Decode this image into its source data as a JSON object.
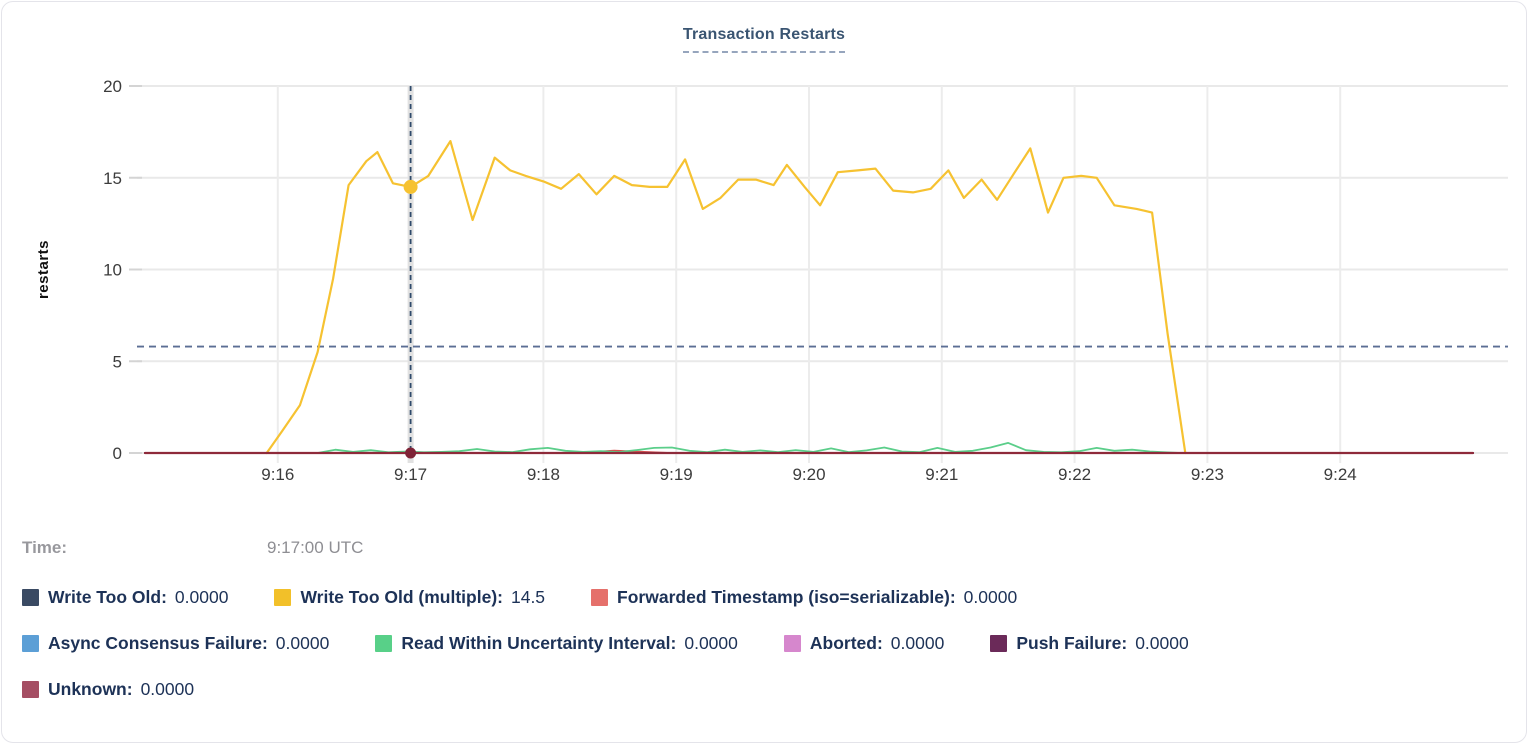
{
  "header": {
    "title": "Transaction Restarts"
  },
  "tooltip": {
    "time_label": "Time:",
    "time_value": "9:17:00 UTC"
  },
  "legend": {
    "rows": [
      [
        {
          "label": "Write Too Old:",
          "value": "0.0000",
          "color": "#3A4A63"
        },
        {
          "label": "Write Too Old (multiple):",
          "value": "14.5",
          "color": "#F2C029"
        },
        {
          "label": "Forwarded Timestamp (iso=serializable):",
          "value": "0.0000",
          "color": "#E5706B"
        }
      ],
      [
        {
          "label": "Async Consensus Failure:",
          "value": "0.0000",
          "color": "#5C9FD6"
        },
        {
          "label": "Read Within Uncertainty Interval:",
          "value": "0.0000",
          "color": "#58D088"
        },
        {
          "label": "Aborted:",
          "value": "0.0000",
          "color": "#D687CD"
        },
        {
          "label": "Push Failure:",
          "value": "0.0000",
          "color": "#6B2A59"
        }
      ],
      [
        {
          "label": "Unknown:",
          "value": "0.0000",
          "color": "#A54E63"
        }
      ]
    ]
  },
  "chart_data": {
    "type": "line",
    "title": "Transaction Restarts",
    "ylabel": "restarts",
    "ylim": [
      0,
      20
    ],
    "y_ticks": [
      0,
      5,
      10,
      15,
      20
    ],
    "x_domain_seconds": [
      0,
      600
    ],
    "x_start_time": "9:15",
    "x_end_time": "9:25",
    "grid": true,
    "x_ticks": [
      {
        "t": 60,
        "label": "9:16"
      },
      {
        "t": 120,
        "label": "9:17"
      },
      {
        "t": 180,
        "label": "9:18"
      },
      {
        "t": 240,
        "label": "9:19"
      },
      {
        "t": 300,
        "label": "9:20"
      },
      {
        "t": 360,
        "label": "9:21"
      },
      {
        "t": 420,
        "label": "9:22"
      },
      {
        "t": 480,
        "label": "9:23"
      },
      {
        "t": 540,
        "label": "9:24"
      }
    ],
    "hover": {
      "time_seconds": 120,
      "time_label": "9:17:00 UTC",
      "guide_value": 5.8,
      "dots": [
        {
          "series": "Write Too Old (multiple)",
          "value": 14.5,
          "color": "#F6C231"
        },
        {
          "series": "Unknown",
          "value": 0,
          "color": "#7E2336"
        }
      ]
    },
    "series": [
      {
        "name": "Write Too Old",
        "color": "#3A4A63",
        "width": 2,
        "points": [
          [
            0,
            0
          ],
          [
            600,
            0
          ]
        ]
      },
      {
        "name": "Write Too Old (multiple)",
        "color": "#F6C231",
        "width": 2.2,
        "points": [
          [
            55,
            0
          ],
          [
            62,
            1.2
          ],
          [
            70,
            2.6
          ],
          [
            78,
            5.5
          ],
          [
            85,
            9.5
          ],
          [
            92,
            14.6
          ],
          [
            100,
            15.9
          ],
          [
            105,
            16.4
          ],
          [
            112,
            14.7
          ],
          [
            120,
            14.5
          ],
          [
            128,
            15.1
          ],
          [
            138,
            17.0
          ],
          [
            148,
            12.7
          ],
          [
            158,
            16.1
          ],
          [
            165,
            15.4
          ],
          [
            172,
            15.1
          ],
          [
            180,
            14.8
          ],
          [
            188,
            14.4
          ],
          [
            196,
            15.2
          ],
          [
            204,
            14.1
          ],
          [
            212,
            15.1
          ],
          [
            220,
            14.6
          ],
          [
            228,
            14.5
          ],
          [
            236,
            14.5
          ],
          [
            244,
            16.0
          ],
          [
            252,
            13.3
          ],
          [
            260,
            13.9
          ],
          [
            268,
            14.9
          ],
          [
            276,
            14.9
          ],
          [
            284,
            14.6
          ],
          [
            290,
            15.7
          ],
          [
            298,
            14.5
          ],
          [
            305,
            13.5
          ],
          [
            313,
            15.3
          ],
          [
            322,
            15.4
          ],
          [
            330,
            15.5
          ],
          [
            338,
            14.3
          ],
          [
            347,
            14.2
          ],
          [
            355,
            14.4
          ],
          [
            363,
            15.4
          ],
          [
            370,
            13.9
          ],
          [
            378,
            14.9
          ],
          [
            385,
            13.8
          ],
          [
            393,
            15.3
          ],
          [
            400,
            16.6
          ],
          [
            408,
            13.1
          ],
          [
            415,
            15.0
          ],
          [
            423,
            15.1
          ],
          [
            430,
            15.0
          ],
          [
            438,
            13.5
          ],
          [
            448,
            13.3
          ],
          [
            455,
            13.1
          ],
          [
            462,
            6.5
          ],
          [
            470,
            0
          ]
        ]
      },
      {
        "name": "Forwarded Timestamp (iso=serializable)",
        "color": "#D8504F",
        "width": 2,
        "points": [
          [
            0,
            0
          ],
          [
            196,
            0
          ],
          [
            204,
            0.06
          ],
          [
            212,
            0.12
          ],
          [
            220,
            0.08
          ],
          [
            228,
            0.04
          ],
          [
            236,
            0
          ],
          [
            600,
            0
          ]
        ]
      },
      {
        "name": "Async Consensus Failure",
        "color": "#5C9FD6",
        "width": 2,
        "points": [
          [
            0,
            0
          ],
          [
            600,
            0
          ]
        ]
      },
      {
        "name": "Read Within Uncertainty Interval",
        "color": "#5BCE8A",
        "width": 1.8,
        "points": [
          [
            78,
            0
          ],
          [
            86,
            0.18
          ],
          [
            94,
            0.06
          ],
          [
            102,
            0.15
          ],
          [
            110,
            0.04
          ],
          [
            118,
            0.08
          ],
          [
            126,
            0.04
          ],
          [
            134,
            0.06
          ],
          [
            142,
            0.1
          ],
          [
            150,
            0.22
          ],
          [
            158,
            0.08
          ],
          [
            166,
            0.05
          ],
          [
            174,
            0.2
          ],
          [
            182,
            0.28
          ],
          [
            190,
            0.12
          ],
          [
            198,
            0.06
          ],
          [
            206,
            0.1
          ],
          [
            214,
            0.05
          ],
          [
            222,
            0.16
          ],
          [
            230,
            0.28
          ],
          [
            238,
            0.3
          ],
          [
            246,
            0.12
          ],
          [
            254,
            0.05
          ],
          [
            262,
            0.18
          ],
          [
            270,
            0.06
          ],
          [
            278,
            0.14
          ],
          [
            286,
            0.05
          ],
          [
            294,
            0.16
          ],
          [
            302,
            0.06
          ],
          [
            310,
            0.25
          ],
          [
            318,
            0.05
          ],
          [
            326,
            0.14
          ],
          [
            334,
            0.3
          ],
          [
            342,
            0.08
          ],
          [
            350,
            0.05
          ],
          [
            358,
            0.28
          ],
          [
            366,
            0.06
          ],
          [
            374,
            0.12
          ],
          [
            382,
            0.3
          ],
          [
            390,
            0.55
          ],
          [
            398,
            0.15
          ],
          [
            406,
            0.06
          ],
          [
            414,
            0.04
          ],
          [
            422,
            0.1
          ],
          [
            430,
            0.28
          ],
          [
            438,
            0.12
          ],
          [
            446,
            0.18
          ],
          [
            454,
            0.08
          ],
          [
            462,
            0.03
          ],
          [
            468,
            0
          ]
        ]
      },
      {
        "name": "Aborted",
        "color": "#D687CD",
        "width": 2,
        "points": [
          [
            0,
            0
          ],
          [
            600,
            0
          ]
        ]
      },
      {
        "name": "Push Failure",
        "color": "#6B2A59",
        "width": 2,
        "points": [
          [
            0,
            0
          ],
          [
            600,
            0
          ]
        ]
      },
      {
        "name": "Unknown",
        "color": "#8E2A3A",
        "width": 2.2,
        "points": [
          [
            0,
            0
          ],
          [
            600,
            0
          ]
        ]
      }
    ]
  }
}
